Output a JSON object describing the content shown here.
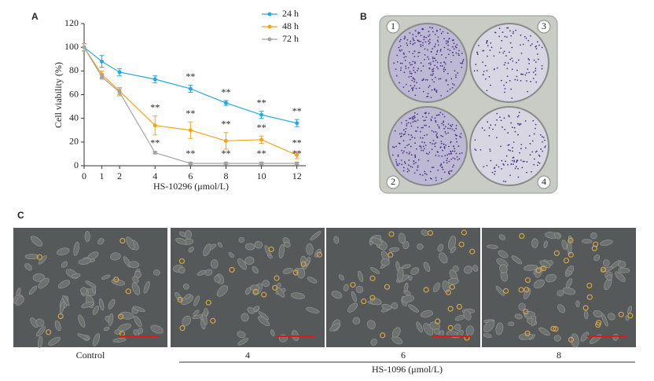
{
  "chart_data": {
    "type": "line",
    "y_label": "Cell viability (%)",
    "x_label": "HS-10296 (μmol/L)",
    "x": [
      0,
      1,
      2,
      4,
      6,
      8,
      10,
      12
    ],
    "xlim": [
      0,
      12.5
    ],
    "xticks": [
      0,
      1,
      2,
      4,
      6,
      8,
      10,
      12
    ],
    "ylim": [
      0,
      120
    ],
    "yticks": [
      0,
      20,
      40,
      60,
      80,
      100,
      120
    ],
    "legend": "upper right",
    "grid": false,
    "series": [
      {
        "name": "24 h",
        "color": "#2aa7df",
        "values": [
          100,
          88,
          79,
          73,
          65,
          53,
          43,
          36
        ],
        "errors": [
          3,
          5,
          3,
          3,
          3,
          2,
          3,
          3
        ],
        "marks": [
          null,
          null,
          null,
          null,
          "**",
          "**",
          "**",
          "**"
        ]
      },
      {
        "name": "48 h",
        "color": "#f4a41c",
        "values": [
          100,
          77,
          63,
          34,
          30,
          21,
          22,
          9
        ],
        "errors": [
          3,
          3,
          3,
          8,
          7,
          7,
          3,
          3
        ],
        "marks": [
          null,
          null,
          null,
          "**",
          "**",
          "**",
          "**",
          "**"
        ]
      },
      {
        "name": "72 h",
        "color": "#a3a3a3",
        "values": [
          100,
          75,
          62,
          11,
          2,
          2,
          2,
          2
        ],
        "errors": [
          3,
          2,
          3,
          1,
          1,
          1,
          1,
          1
        ],
        "marks": [
          null,
          null,
          null,
          "**",
          "**",
          "**",
          "**",
          "**"
        ]
      }
    ]
  },
  "panels": {
    "a": "A",
    "b": "B",
    "c": "C"
  },
  "plate": {
    "wells": [
      "1",
      "3",
      "2",
      "4"
    ]
  },
  "micrographs": {
    "captions": [
      "Control",
      "4",
      "6",
      "8"
    ],
    "group_label": "HS-1096 (μmol/L)"
  }
}
